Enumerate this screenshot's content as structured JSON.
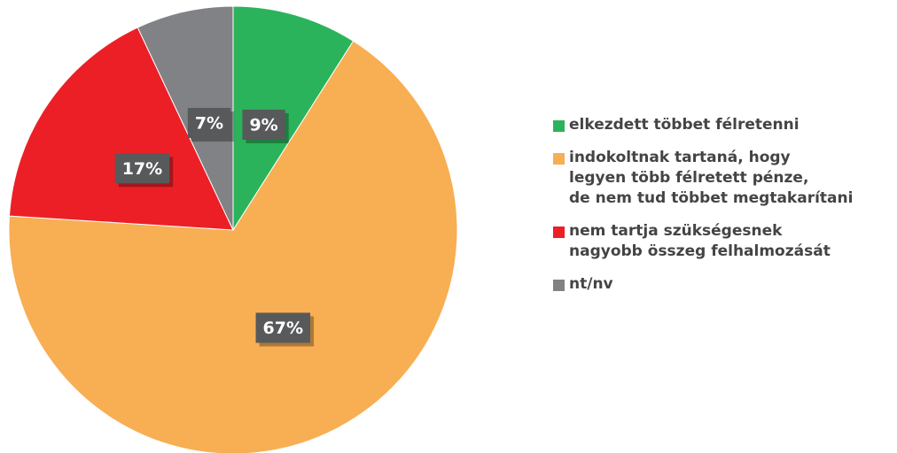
{
  "chart_data": {
    "type": "pie",
    "categories": [
      "elkezdett többet félretenni",
      "indokoltnak tartaná, hogy\nlegyen több félretett pénze,\nde nem tud többet megtakarítani",
      "nem tartja szükségesnek\nnagyobb összeg felhalmozását",
      "nt/nv"
    ],
    "values": [
      9,
      67,
      17,
      7
    ],
    "value_labels": [
      "9%",
      "67%",
      "17%",
      "7%"
    ],
    "colors": [
      "#2bb35b",
      "#f8ae52",
      "#ec1f27",
      "#808285"
    ]
  }
}
